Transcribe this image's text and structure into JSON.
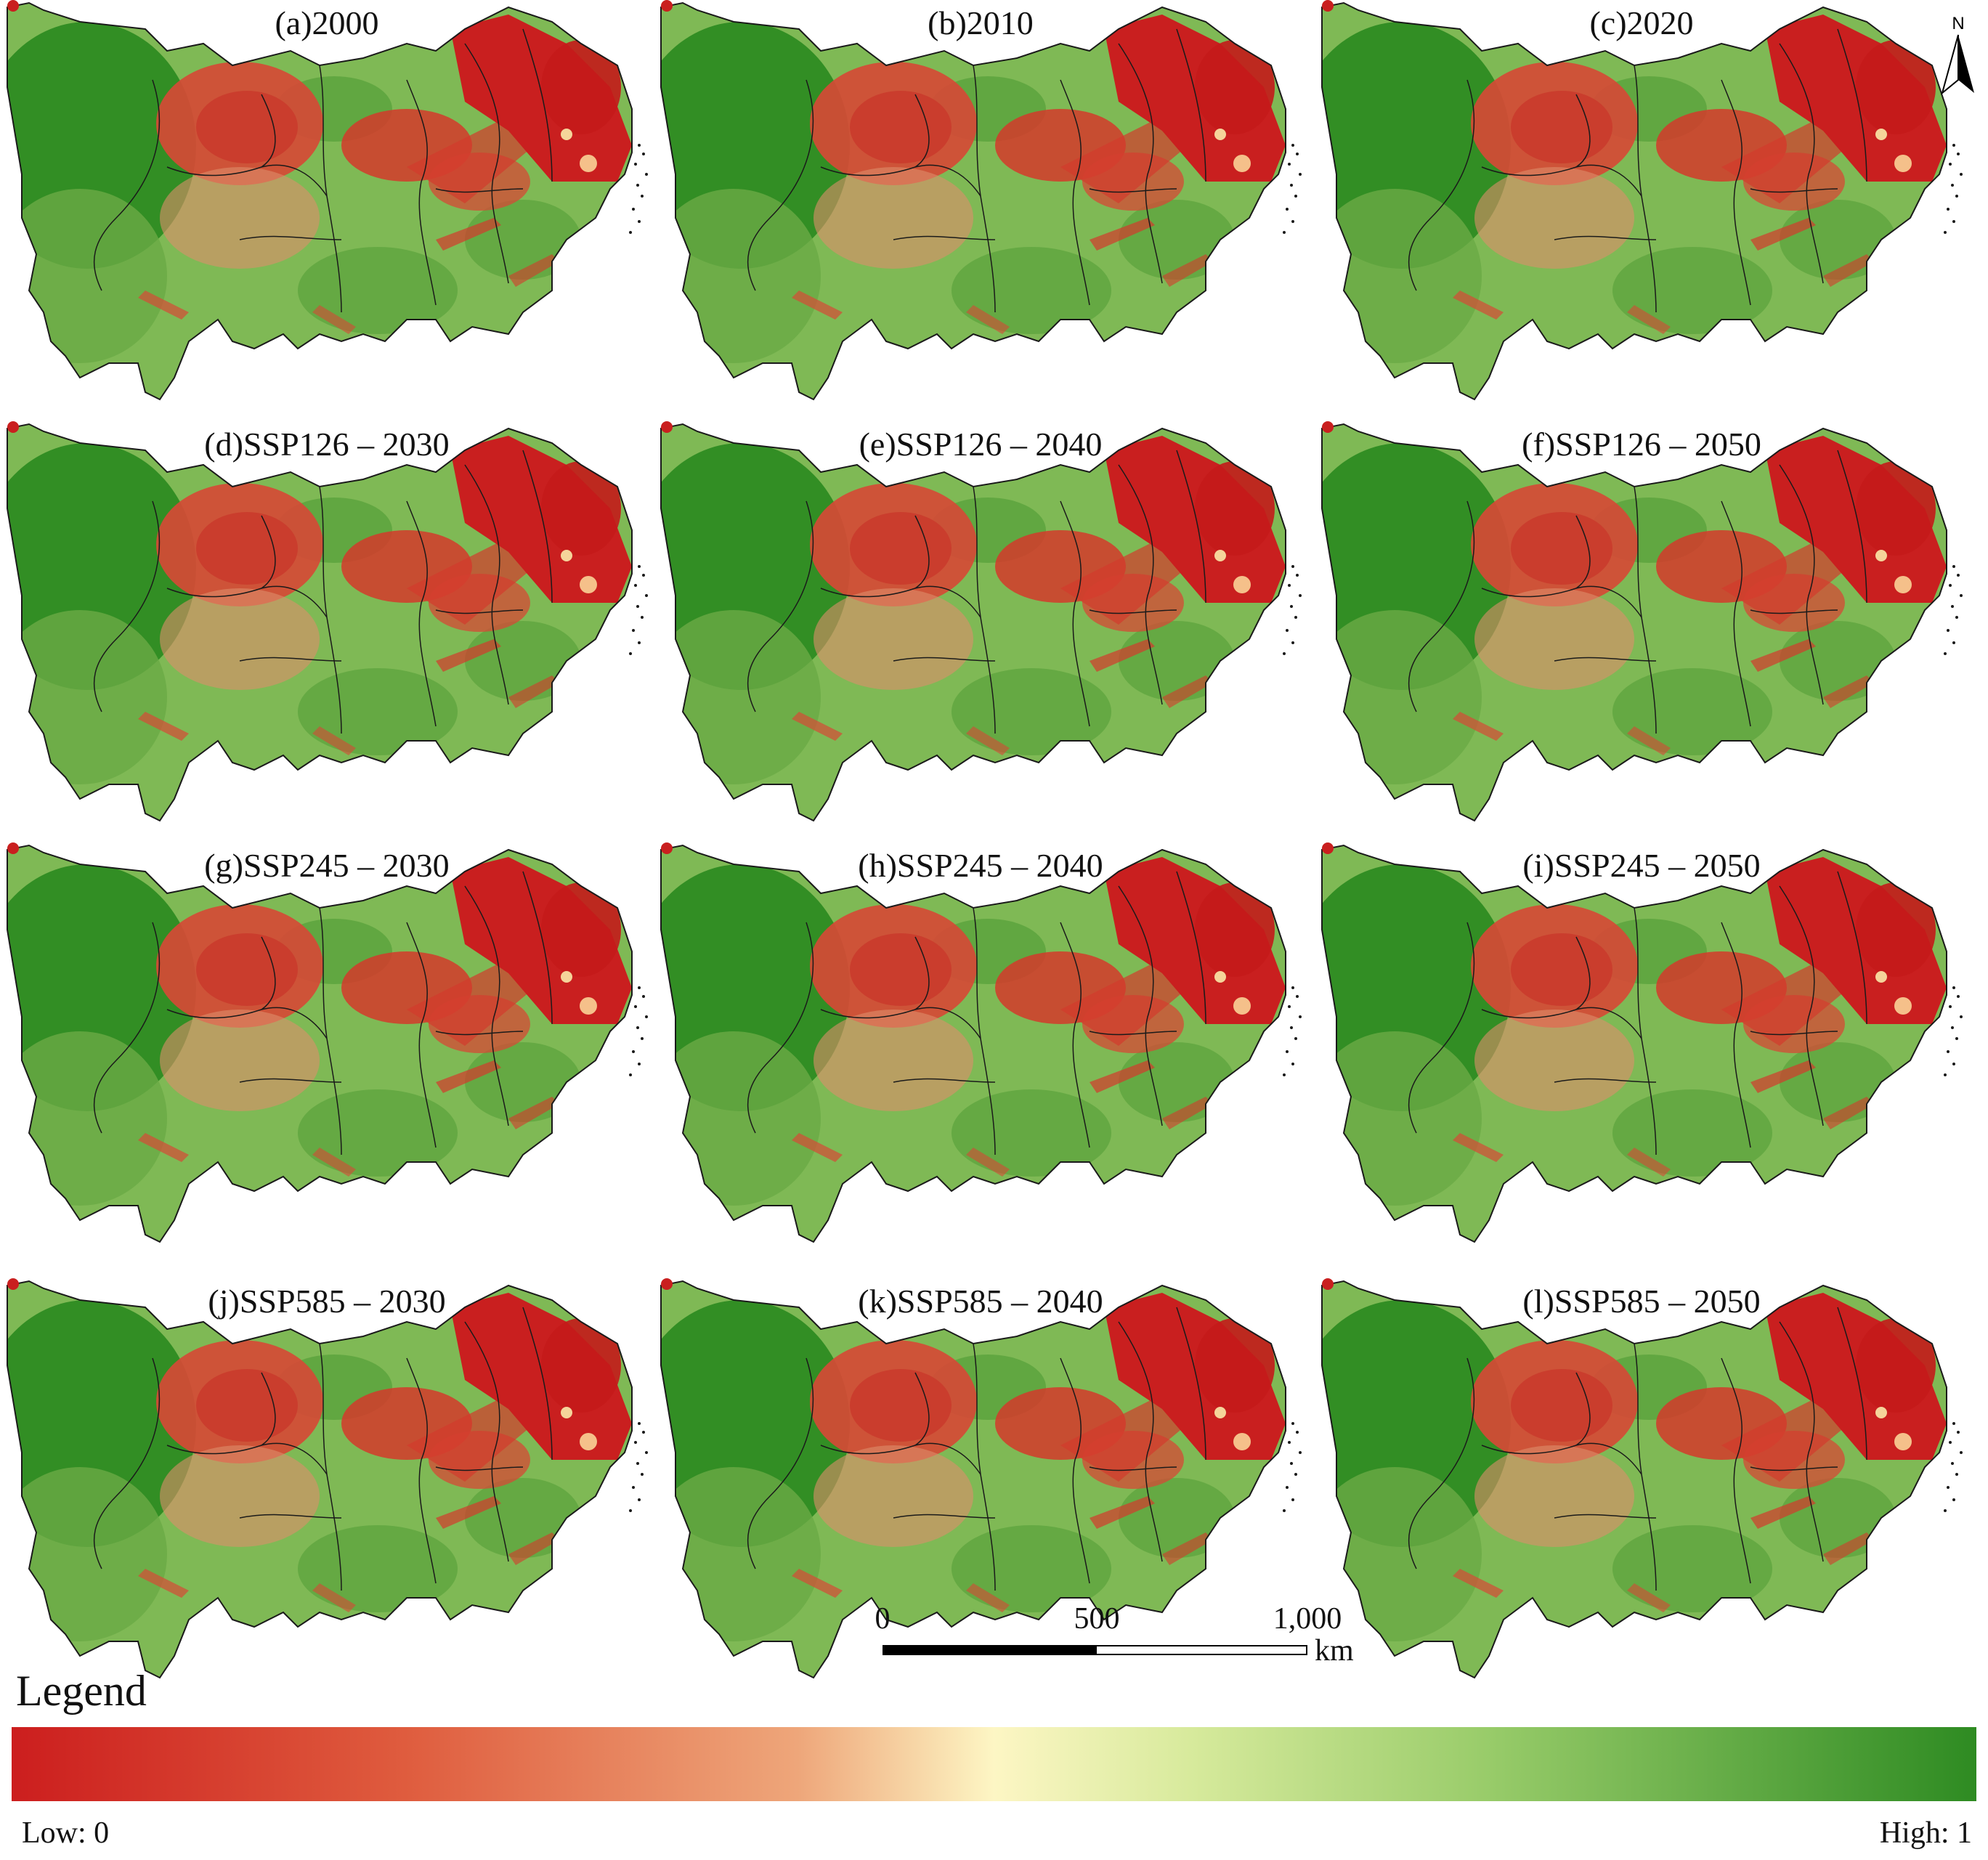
{
  "colors": {
    "low": "#cc1e1e",
    "mid": "#fdf6c4",
    "high": "#2e8b22",
    "boundary": "#1a1a1a"
  },
  "panels": [
    {
      "label": "(a)2000"
    },
    {
      "label": "(b)2010"
    },
    {
      "label": "(c)2020"
    },
    {
      "label": "(d)SSP126 – 2030"
    },
    {
      "label": "(e)SSP126 – 2040"
    },
    {
      "label": "(f)SSP126 – 2050"
    },
    {
      "label": "(g)SSP245 – 2030"
    },
    {
      "label": "(h)SSP245 – 2040"
    },
    {
      "label": "(i)SSP245 – 2050"
    },
    {
      "label": "(j)SSP585 – 2030"
    },
    {
      "label": "(k)SSP585 – 2040"
    },
    {
      "label": "(l)SSP585 – 2050"
    }
  ],
  "north_arrow": {
    "label": "N"
  },
  "scalebar": {
    "labels": [
      "0",
      "500",
      "1,000"
    ],
    "unit": "km"
  },
  "legend": {
    "title": "Legend",
    "low_label": "Low: 0",
    "high_label": "High: 1"
  }
}
